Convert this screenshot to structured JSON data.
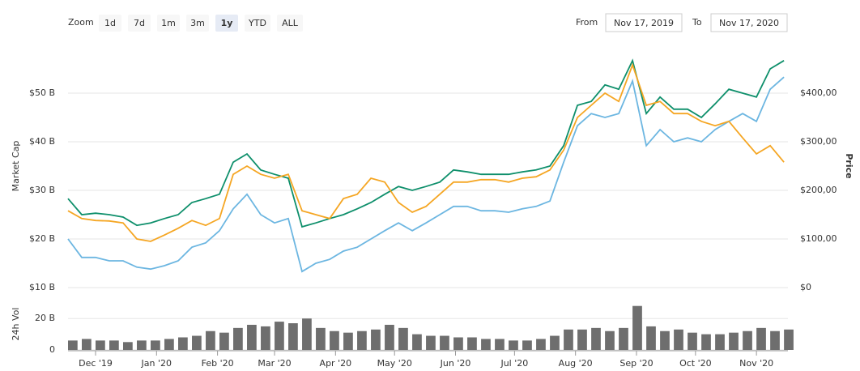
{
  "controls": {
    "zoom_label": "Zoom",
    "ranges": [
      "1d",
      "7d",
      "1m",
      "3m",
      "1y",
      "YTD",
      "ALL"
    ],
    "selected_range": "1y",
    "from_label": "From",
    "from": "Nov 17, 2019",
    "to_label": "To",
    "to": "Nov 17, 2020"
  },
  "chart_data": [
    {
      "type": "line",
      "ylabel": "Market Cap",
      "y2label": "Price",
      "xlim": [
        "2019-11-17",
        "2020-11-17"
      ],
      "x": [
        "2019-11-17",
        "2019-11-24",
        "2019-12-01",
        "2019-12-08",
        "2019-12-15",
        "2019-12-22",
        "2019-12-29",
        "2020-01-05",
        "2020-01-12",
        "2020-01-19",
        "2020-01-26",
        "2020-02-02",
        "2020-02-09",
        "2020-02-16",
        "2020-02-23",
        "2020-03-01",
        "2020-03-08",
        "2020-03-15",
        "2020-03-22",
        "2020-03-29",
        "2020-04-05",
        "2020-04-12",
        "2020-04-19",
        "2020-04-26",
        "2020-05-03",
        "2020-05-10",
        "2020-05-17",
        "2020-05-24",
        "2020-05-31",
        "2020-06-07",
        "2020-06-14",
        "2020-06-21",
        "2020-06-28",
        "2020-07-05",
        "2020-07-12",
        "2020-07-19",
        "2020-07-26",
        "2020-08-02",
        "2020-08-09",
        "2020-08-16",
        "2020-08-23",
        "2020-08-30",
        "2020-09-06",
        "2020-09-13",
        "2020-09-20",
        "2020-09-27",
        "2020-10-04",
        "2020-10-11",
        "2020-10-18",
        "2020-10-25",
        "2020-11-01",
        "2020-11-08",
        "2020-11-15"
      ],
      "ylim": [
        10,
        60
      ],
      "yticks": [
        {
          "value": 10,
          "label": "$10 B"
        },
        {
          "value": 20,
          "label": "$20 B"
        },
        {
          "value": 30,
          "label": "$30 B"
        },
        {
          "value": 40,
          "label": "$40 B"
        },
        {
          "value": 50,
          "label": "$50 B"
        }
      ],
      "y2lim": [
        0,
        500
      ],
      "y2ticks": [
        {
          "value": 0,
          "label": "$0"
        },
        {
          "value": 100,
          "label": "$100,00"
        },
        {
          "value": 200,
          "label": "$200,00"
        },
        {
          "value": 300,
          "label": "$300,00"
        },
        {
          "value": 400,
          "label": "$400,00"
        }
      ],
      "grid": true,
      "series": [
        {
          "name": "Market Cap",
          "color": "#6cb6e1",
          "values": [
            20,
            16.2,
            16.2,
            15.5,
            15.5,
            14.2,
            13.8,
            14.5,
            15.5,
            18.3,
            19.2,
            21.7,
            26.2,
            29.2,
            25,
            23.3,
            24.2,
            13.3,
            15,
            15.8,
            17.5,
            18.3,
            20,
            21.7,
            23.3,
            21.7,
            23.3,
            25,
            26.7,
            26.7,
            25.8,
            25.8,
            25.5,
            26.2,
            26.7,
            27.8,
            35.8,
            43.3,
            45.8,
            45,
            45.8,
            52.5,
            39.2,
            42.5,
            40,
            40.8,
            40,
            42.5,
            44.2,
            45.8,
            44.2,
            50.8,
            53.3
          ]
        },
        {
          "name": "Price",
          "color": "#0e8f6b",
          "axis": "y2",
          "values": [
            183,
            150,
            153,
            150,
            145,
            128,
            133,
            142,
            150,
            175,
            183,
            192,
            258,
            275,
            242,
            233,
            225,
            125,
            133,
            142,
            150,
            162,
            175,
            192,
            208,
            200,
            208,
            217,
            242,
            238,
            233,
            233,
            233,
            238,
            242,
            250,
            292,
            375,
            383,
            417,
            408,
            467,
            358,
            392,
            367,
            367,
            350,
            378,
            408,
            400,
            392,
            450,
            467
          ]
        },
        {
          "color": "#f5a623",
          "axis": "y2",
          "values": [
            158,
            142,
            138,
            137,
            133,
            100,
            95,
            108,
            122,
            138,
            128,
            142,
            233,
            250,
            233,
            225,
            233,
            158,
            150,
            142,
            183,
            192,
            225,
            217,
            175,
            155,
            167,
            192,
            217,
            217,
            222,
            222,
            217,
            225,
            228,
            242,
            283,
            350,
            375,
            400,
            383,
            458,
            375,
            383,
            358,
            358,
            342,
            333,
            342,
            308,
            275,
            292,
            258
          ]
        }
      ]
    },
    {
      "type": "bar",
      "ylabel": "24h Vol",
      "color": "#6e6e6e",
      "xlim": [
        "2019-11-17",
        "2020-11-17"
      ],
      "x": [
        "2019-11-17",
        "2019-11-24",
        "2019-12-01",
        "2019-12-08",
        "2019-12-15",
        "2019-12-22",
        "2019-12-29",
        "2020-01-05",
        "2020-01-12",
        "2020-01-19",
        "2020-01-26",
        "2020-02-02",
        "2020-02-09",
        "2020-02-16",
        "2020-02-23",
        "2020-03-01",
        "2020-03-08",
        "2020-03-15",
        "2020-03-22",
        "2020-03-29",
        "2020-04-05",
        "2020-04-12",
        "2020-04-19",
        "2020-04-26",
        "2020-05-03",
        "2020-05-10",
        "2020-05-17",
        "2020-05-24",
        "2020-05-31",
        "2020-06-07",
        "2020-06-14",
        "2020-06-21",
        "2020-06-28",
        "2020-07-05",
        "2020-07-12",
        "2020-07-19",
        "2020-07-26",
        "2020-08-02",
        "2020-08-09",
        "2020-08-16",
        "2020-08-23",
        "2020-08-30",
        "2020-09-06",
        "2020-09-13",
        "2020-09-20",
        "2020-09-27",
        "2020-10-04",
        "2020-10-11",
        "2020-10-18",
        "2020-10-25",
        "2020-11-01",
        "2020-11-08",
        "2020-11-15"
      ],
      "values": [
        6,
        7,
        6,
        6,
        5,
        6,
        6,
        7,
        8,
        9,
        12,
        11,
        14,
        16,
        15,
        18,
        17,
        20,
        14,
        12,
        11,
        12,
        13,
        16,
        14,
        10,
        9,
        9,
        8,
        8,
        7,
        7,
        6,
        6,
        7,
        9,
        13,
        13,
        14,
        12,
        14,
        28,
        15,
        12,
        13,
        11,
        10,
        10,
        11,
        12,
        14,
        12,
        13
      ],
      "ylim": [
        0,
        33
      ],
      "yticks": [
        0,
        {
          "value": 20,
          "label": "20 B"
        }
      ],
      "xticks": [
        {
          "value": "2019-12-01",
          "label": "Dec '19"
        },
        {
          "value": "2020-01-01",
          "label": "Jan '20"
        },
        {
          "value": "2020-02-01",
          "label": "Feb '20"
        },
        {
          "value": "2020-03-01",
          "label": "Mar '20"
        },
        {
          "value": "2020-04-01",
          "label": "Apr '20"
        },
        {
          "value": "2020-05-01",
          "label": "May '20"
        },
        {
          "value": "2020-06-01",
          "label": "Jun '20"
        },
        {
          "value": "2020-07-01",
          "label": "Jul '20"
        },
        {
          "value": "2020-08-01",
          "label": "Aug '20"
        },
        {
          "value": "2020-09-01",
          "label": "Sep '20"
        },
        {
          "value": "2020-10-01",
          "label": "Oct '20"
        },
        {
          "value": "2020-11-01",
          "label": "Nov '20"
        }
      ]
    }
  ]
}
